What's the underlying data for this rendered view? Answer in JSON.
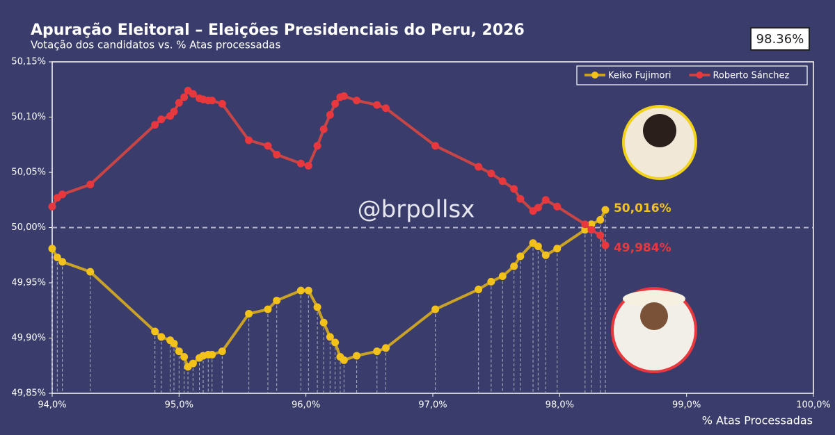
{
  "chart_data": {
    "type": "line",
    "title": "Apuração Eleitoral – Eleições Presidenciais do Peru, 2026",
    "subtitle": "Votação dos candidatos vs. % Atas processadas",
    "badge": "98.36%",
    "watermark": "@brpollsx",
    "x_label": "% Atas Processadas",
    "x": [
      94.0,
      94.04,
      94.08,
      94.3,
      94.81,
      94.86,
      94.93,
      94.96,
      95.0,
      95.04,
      95.07,
      95.11,
      95.16,
      95.19,
      95.23,
      95.26,
      95.34,
      95.55,
      95.7,
      95.77,
      95.96,
      96.02,
      96.09,
      96.14,
      96.19,
      96.23,
      96.27,
      96.3,
      96.4,
      96.56,
      96.63,
      97.02,
      97.36,
      97.46,
      97.55,
      97.64,
      97.69,
      97.79,
      97.83,
      97.89,
      97.98,
      98.2,
      98.25,
      98.32,
      98.36
    ],
    "series": [
      {
        "name": "Keiko Fujimori",
        "color": "#f2c21b",
        "line_color": "#c9a227",
        "values": [
          49.981,
          49.973,
          49.969,
          49.96,
          49.906,
          49.901,
          49.898,
          49.895,
          49.888,
          49.883,
          49.874,
          49.877,
          49.882,
          49.884,
          49.885,
          49.885,
          49.888,
          49.922,
          49.926,
          49.934,
          49.943,
          49.943,
          49.928,
          49.914,
          49.901,
          49.896,
          49.883,
          49.88,
          49.884,
          49.888,
          49.891,
          49.926,
          49.944,
          49.951,
          49.956,
          49.965,
          49.974,
          49.986,
          49.983,
          49.975,
          49.981,
          49.998,
          50.003,
          50.007,
          50.016
        ],
        "value_labels": [
          null,
          null,
          null,
          null,
          null,
          null,
          null,
          null,
          null,
          null,
          null,
          null,
          null,
          null,
          null,
          null,
          null,
          null,
          null,
          null,
          null,
          null,
          null,
          null,
          null,
          null,
          null,
          null,
          null,
          null,
          null,
          null,
          null,
          null,
          null,
          null,
          null,
          null,
          null,
          null,
          null,
          null,
          null,
          null,
          "50,016%"
        ]
      },
      {
        "name": "Roberto Sánchez",
        "color": "#e8383d",
        "line_color": "#c94545",
        "values": [
          50.019,
          50.027,
          50.03,
          50.039,
          50.093,
          50.098,
          50.101,
          50.105,
          50.113,
          50.118,
          50.124,
          50.121,
          50.117,
          50.116,
          50.115,
          50.115,
          50.112,
          50.079,
          50.074,
          50.066,
          50.058,
          50.056,
          50.074,
          50.089,
          50.102,
          50.112,
          50.118,
          50.119,
          50.115,
          50.111,
          50.108,
          50.074,
          50.055,
          50.049,
          50.042,
          50.035,
          50.026,
          50.015,
          50.018,
          50.025,
          50.019,
          50.003,
          49.998,
          49.993,
          49.984
        ],
        "value_labels": [
          null,
          null,
          null,
          null,
          null,
          null,
          null,
          null,
          null,
          null,
          null,
          null,
          null,
          null,
          null,
          null,
          null,
          null,
          null,
          null,
          null,
          null,
          null,
          null,
          null,
          null,
          null,
          null,
          null,
          null,
          null,
          null,
          null,
          null,
          null,
          null,
          null,
          null,
          null,
          null,
          null,
          null,
          null,
          null,
          "49,984%"
        ]
      }
    ],
    "xlim": [
      94,
      100
    ],
    "xticks": [
      {
        "value": 94,
        "label": "94,0%"
      },
      {
        "value": 95,
        "label": "95,0%"
      },
      {
        "value": 96,
        "label": "96,0%"
      },
      {
        "value": 97,
        "label": "97,0%"
      },
      {
        "value": 98,
        "label": "98,0%"
      },
      {
        "value": 99,
        "label": "99,0%"
      },
      {
        "value": 100,
        "label": "100,0%"
      }
    ],
    "ylim": [
      49.85,
      50.15
    ],
    "yticks": [
      {
        "value": 49.85,
        "label": "49,85%"
      },
      {
        "value": 49.9,
        "label": "49,90%"
      },
      {
        "value": 49.95,
        "label": "49,95%"
      },
      {
        "value": 50,
        "label": "50,00%"
      },
      {
        "value": 50.05,
        "label": "50,05%"
      },
      {
        "value": 50.1,
        "label": "50,10%"
      },
      {
        "value": 50.15,
        "label": "50,15%"
      }
    ],
    "reference_line": 50,
    "drop_lines": true,
    "legend_position": "upper right"
  }
}
